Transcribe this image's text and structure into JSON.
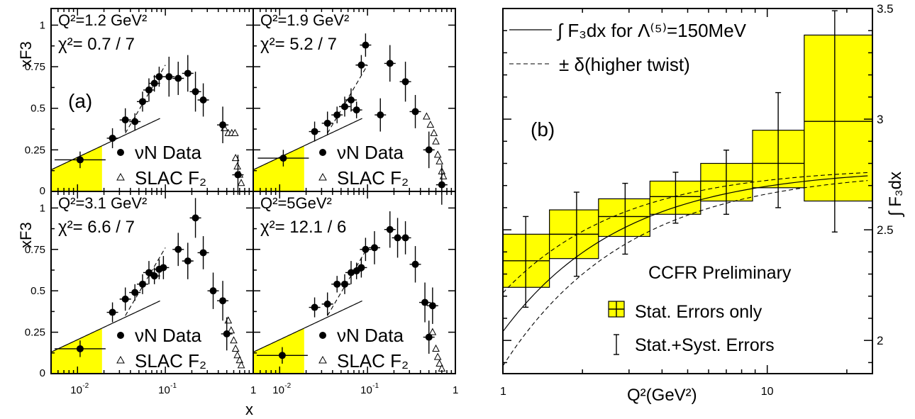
{
  "chart_data": [
    {
      "type": "scatter",
      "panel": "(a)",
      "xlabel": "x",
      "ylabel": "xF3",
      "xscale": "log",
      "xlim": [
        0.005,
        1
      ],
      "ylim": [
        0,
        1.1
      ],
      "yticks": [
        "0.25",
        "0.5",
        "0.75",
        "1"
      ],
      "xticks": [
        "10-2",
        "10-1",
        "1"
      ],
      "subplots": [
        {
          "q2_label": "Q²=1.2  GeV²",
          "chi2_label": "χ²= 0.7 / 7",
          "panel_label": "(a)",
          "legend": [
            "νN Data",
            "SLAC F₂"
          ],
          "nuN": [
            [
              0.0107,
              0.19
            ],
            [
              0.025,
              0.32
            ],
            [
              0.035,
              0.43
            ],
            [
              0.045,
              0.42
            ],
            [
              0.055,
              0.54
            ],
            [
              0.065,
              0.61
            ],
            [
              0.075,
              0.65
            ],
            [
              0.085,
              0.69
            ],
            [
              0.11,
              0.69
            ],
            [
              0.14,
              0.68
            ],
            [
              0.18,
              0.71
            ],
            [
              0.22,
              0.6
            ],
            [
              0.27,
              0.55
            ],
            [
              0.45,
              0.4
            ],
            [
              0.67,
              0.1
            ]
          ],
          "slac": [
            [
              0.47,
              0.38
            ],
            [
              0.52,
              0.35
            ],
            [
              0.57,
              0.35
            ],
            [
              0.62,
              0.35
            ],
            [
              0.63,
              0.2
            ],
            [
              0.66,
              0.15
            ],
            [
              0.7,
              0.1
            ],
            [
              0.73,
              0.05
            ]
          ],
          "curve_end": 0.09
        },
        {
          "q2_label": "Q²=1.9  GeV²",
          "chi2_label": "χ²= 5.2 / 7",
          "legend": [
            "νN Data",
            "SLAC F₂"
          ],
          "nuN": [
            [
              0.011,
              0.2
            ],
            [
              0.025,
              0.36
            ],
            [
              0.035,
              0.41
            ],
            [
              0.045,
              0.46
            ],
            [
              0.055,
              0.51
            ],
            [
              0.065,
              0.55
            ],
            [
              0.075,
              0.49
            ],
            [
              0.085,
              0.76
            ],
            [
              0.095,
              0.88
            ],
            [
              0.14,
              0.46
            ],
            [
              0.18,
              0.77
            ],
            [
              0.27,
              0.66
            ],
            [
              0.35,
              0.48
            ],
            [
              0.5,
              0.25
            ],
            [
              0.7,
              0.04
            ]
          ],
          "slac": [
            [
              0.47,
              0.45
            ],
            [
              0.52,
              0.4
            ],
            [
              0.57,
              0.35
            ],
            [
              0.6,
              0.3
            ],
            [
              0.63,
              0.22
            ],
            [
              0.66,
              0.18
            ],
            [
              0.7,
              0.12
            ],
            [
              0.73,
              0.09
            ]
          ],
          "curve_end": 0.09
        },
        {
          "q2_label": "Q²=3.1  GeV²",
          "chi2_label": "χ²= 6.6 / 7",
          "legend": [
            "νN Data",
            "SLAC F₂"
          ],
          "nuN": [
            [
              0.0107,
              0.15
            ],
            [
              0.025,
              0.37
            ],
            [
              0.035,
              0.45
            ],
            [
              0.045,
              0.49
            ],
            [
              0.055,
              0.54
            ],
            [
              0.065,
              0.61
            ],
            [
              0.075,
              0.59
            ],
            [
              0.085,
              0.63
            ],
            [
              0.095,
              0.64
            ],
            [
              0.14,
              0.75
            ],
            [
              0.18,
              0.68
            ],
            [
              0.22,
              0.94
            ],
            [
              0.27,
              0.73
            ],
            [
              0.35,
              0.5
            ],
            [
              0.45,
              0.44
            ],
            [
              0.5,
              0.24
            ]
          ],
          "slac": [
            [
              0.52,
              0.32
            ],
            [
              0.56,
              0.26
            ],
            [
              0.6,
              0.2
            ],
            [
              0.63,
              0.15
            ],
            [
              0.66,
              0.11
            ],
            [
              0.7,
              0.08
            ],
            [
              0.73,
              0.05
            ]
          ],
          "curve_end": 0.09
        },
        {
          "q2_label": "Q²=5GeV²",
          "chi2_label": "χ²= 12.1 / 6",
          "legend": [
            "νN Data",
            "SLAC F₂"
          ],
          "nuN": [
            [
              0.0107,
              0.11
            ],
            [
              0.025,
              0.4
            ],
            [
              0.035,
              0.42
            ],
            [
              0.045,
              0.54
            ],
            [
              0.055,
              0.54
            ],
            [
              0.065,
              0.61
            ],
            [
              0.075,
              0.62
            ],
            [
              0.085,
              0.64
            ],
            [
              0.095,
              0.75
            ],
            [
              0.12,
              0.76
            ],
            [
              0.18,
              0.87
            ],
            [
              0.22,
              0.82
            ],
            [
              0.27,
              0.82
            ],
            [
              0.35,
              0.66
            ],
            [
              0.45,
              0.43
            ],
            [
              0.5,
              0.22
            ],
            [
              0.55,
              0.41
            ]
          ],
          "slac": [
            [
              0.55,
              0.25
            ],
            [
              0.6,
              0.15
            ],
            [
              0.63,
              0.1
            ],
            [
              0.66,
              0.06
            ],
            [
              0.7,
              0.03
            ]
          ],
          "curve_end": 0.09
        }
      ]
    },
    {
      "type": "bar",
      "panel": "(b)",
      "panel_label": "(b)",
      "xlabel": "Q²(GeV²)",
      "ylabel": "∫ F₃dx",
      "xscale": "log",
      "xlim": [
        1,
        25
      ],
      "ylim": [
        1.85,
        3.5
      ],
      "yticks": [
        "2",
        "2.5",
        "3",
        "3.5"
      ],
      "xticks": [
        "1",
        "10"
      ],
      "title": "CCFR Preliminary",
      "legend": {
        "solid": "∫ F₃dx for Λ⁽⁵⁾=150MeV",
        "dashed": "± δ(higher twist)",
        "box": "Stat. Errors only",
        "bar": "Stat.+Syst. Errors"
      },
      "bins": [
        {
          "lo": 1.0,
          "hi": 1.5,
          "center": 1.22,
          "value": 2.36,
          "stat_lo": 2.24,
          "stat_hi": 2.48,
          "sys_lo": 2.15,
          "sys_hi": 2.56
        },
        {
          "lo": 1.5,
          "hi": 2.3,
          "center": 1.9,
          "value": 2.48,
          "stat_lo": 2.37,
          "stat_hi": 2.59,
          "sys_lo": 2.29,
          "sys_hi": 2.67
        },
        {
          "lo": 2.3,
          "hi": 3.6,
          "center": 2.9,
          "value": 2.56,
          "stat_lo": 2.47,
          "stat_hi": 2.64,
          "sys_lo": 2.39,
          "sys_hi": 2.71
        },
        {
          "lo": 3.6,
          "hi": 5.6,
          "center": 4.5,
          "value": 2.65,
          "stat_lo": 2.57,
          "stat_hi": 2.72,
          "sys_lo": 2.53,
          "sys_hi": 2.76
        },
        {
          "lo": 5.6,
          "hi": 8.8,
          "center": 7.0,
          "value": 2.72,
          "stat_lo": 2.63,
          "stat_hi": 2.8,
          "sys_lo": 2.57,
          "sys_hi": 2.86
        },
        {
          "lo": 8.8,
          "hi": 13.8,
          "center": 11.0,
          "value": 2.8,
          "stat_lo": 2.69,
          "stat_hi": 2.95,
          "sys_lo": 2.6,
          "sys_hi": 3.12
        },
        {
          "lo": 13.8,
          "hi": 25.0,
          "center": 18.0,
          "value": 2.99,
          "stat_lo": 2.63,
          "stat_hi": 3.38,
          "sys_lo": 2.49,
          "sys_hi": 3.49
        }
      ]
    }
  ]
}
